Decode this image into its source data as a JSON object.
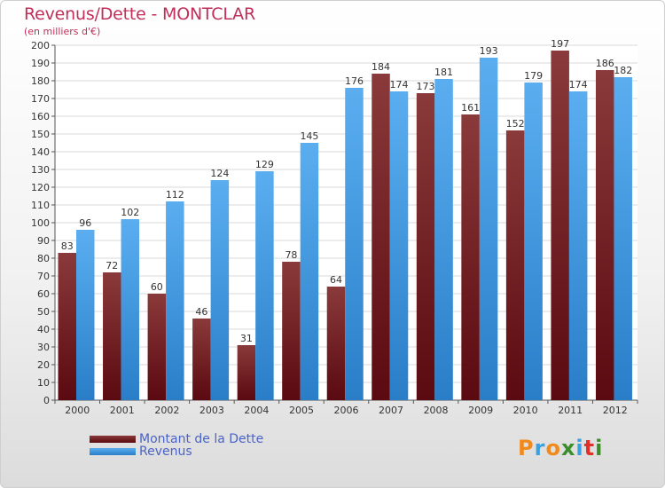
{
  "header": {
    "title": "Revenus/Dette - MONTCLAR",
    "subtitle": "(en milliers d'€)"
  },
  "logo": {
    "text": "Proxiti",
    "letters": [
      "P",
      "r",
      "o",
      "x",
      "i",
      "t",
      "i"
    ],
    "colors": [
      "#f08a1c",
      "#3aa0e0",
      "#f08a1c",
      "#3a8f2a",
      "#3aa0e0",
      "#e0302a",
      "#3a8f2a"
    ]
  },
  "colors": {
    "dette_dark": "#5a0a10",
    "dette_light": "#8a3a3a",
    "revenus_dark": "#2a7ec8",
    "revenus_light": "#5aaef0",
    "grid": "#d8d8d8",
    "title": "#c0305a"
  },
  "chart_data": {
    "type": "bar",
    "title": "Revenus/Dette - MONTCLAR",
    "ylabel": "(en milliers d'€)",
    "ylim": [
      0,
      200
    ],
    "yticks": [
      0,
      10,
      20,
      30,
      40,
      50,
      60,
      70,
      80,
      90,
      100,
      110,
      120,
      130,
      140,
      150,
      160,
      170,
      180,
      190,
      200
    ],
    "grid": true,
    "legend_position": "bottom-left",
    "categories": [
      "2000",
      "2001",
      "2002",
      "2003",
      "2004",
      "2005",
      "2006",
      "2007",
      "2008",
      "2009",
      "2010",
      "2011",
      "2012"
    ],
    "series": [
      {
        "name": "Montant de la Dette",
        "values": [
          83,
          72,
          60,
          46,
          31,
          78,
          64,
          184,
          173,
          161,
          152,
          197,
          186
        ]
      },
      {
        "name": "Revenus",
        "values": [
          96,
          102,
          112,
          124,
          129,
          145,
          176,
          174,
          181,
          193,
          179,
          174,
          182
        ]
      }
    ]
  }
}
